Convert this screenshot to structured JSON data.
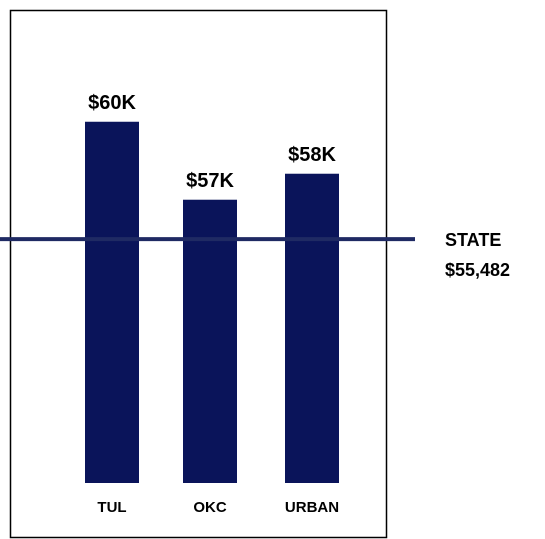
{
  "chart_data": {
    "type": "bar",
    "categories": [
      "TUL",
      "OKC",
      "URBAN"
    ],
    "values": [
      60000,
      57000,
      58000
    ],
    "value_labels": [
      "$60K",
      "$57K",
      "$58K"
    ],
    "color": "#0a145a",
    "ylim": [
      46100,
      64300
    ],
    "reference_line": {
      "value": 55482,
      "label": "STATE",
      "value_label": "$55,482",
      "color": "#1f2a63"
    }
  }
}
